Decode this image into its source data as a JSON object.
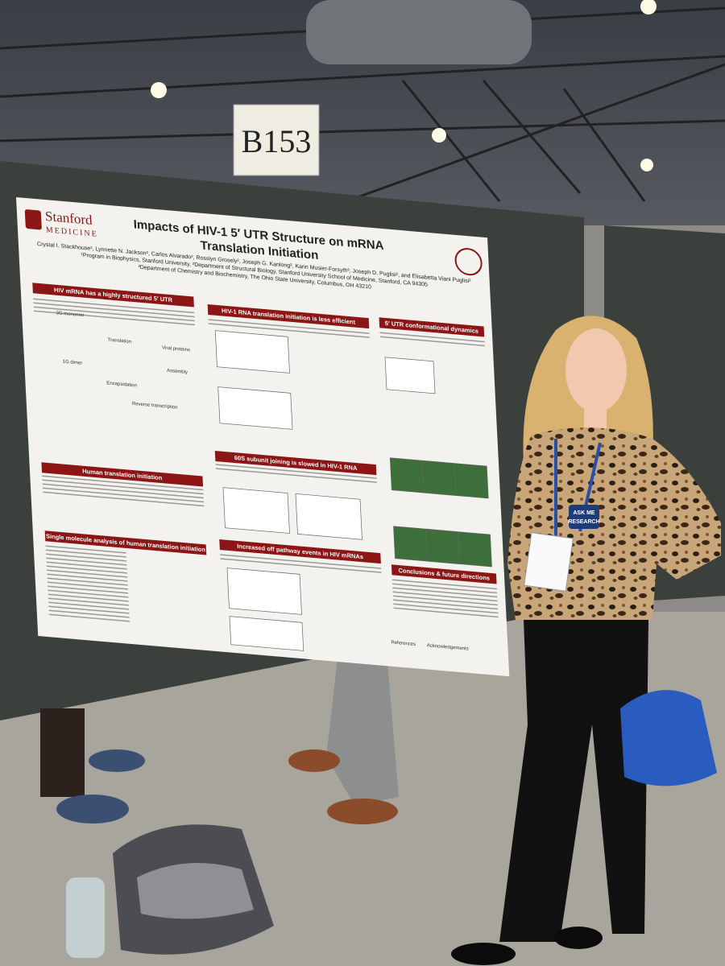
{
  "sign": "B153",
  "poster": {
    "logo": [
      "Stanford",
      "MEDICINE"
    ],
    "title": [
      "Impacts of HIV-1 5′ UTR Structure on mRNA",
      "Translation Initiation"
    ],
    "authors": "Crystal I. Stackhouse¹, Lynnette N. Jackson², Carlos Alvarado², Rosslyn Grosely², Joseph G. Kanlong³, Karin Musier-Forsyth³, Joseph D. Puglisi², and Elisabetta Viani Puglisi²",
    "affiliations": [
      "¹Program in Biophysics, Stanford University, ²Department of Structural Biology, Stanford University School of Medicine, Stanford, CA 94305",
      "³Department of Chemistry and Biochemistry, The Ohio State University, Columbus, OH 43210"
    ],
    "sections": [
      "HIV mRNA has a highly structured 5′ UTR",
      "Human translation initiation",
      "Single molecule analysis of human translation initiation",
      "HIV-1 RNA translation initiation is less efficient",
      "60S subunit joining is slowed in HIV-1 RNA",
      "Increased off pathway events in HIV mRNAs",
      "5′ UTR conformational dynamics",
      "Conclusions & future directions"
    ],
    "figure_labels": [
      "3G monomer",
      "1G dimer",
      "Translation",
      "Viral proteins",
      "Assembly",
      "Encapsidation",
      "Reverse transcription",
      "References",
      "Acknowledgements"
    ]
  },
  "badge": [
    "ASK ME",
    "RESEARCH"
  ]
}
